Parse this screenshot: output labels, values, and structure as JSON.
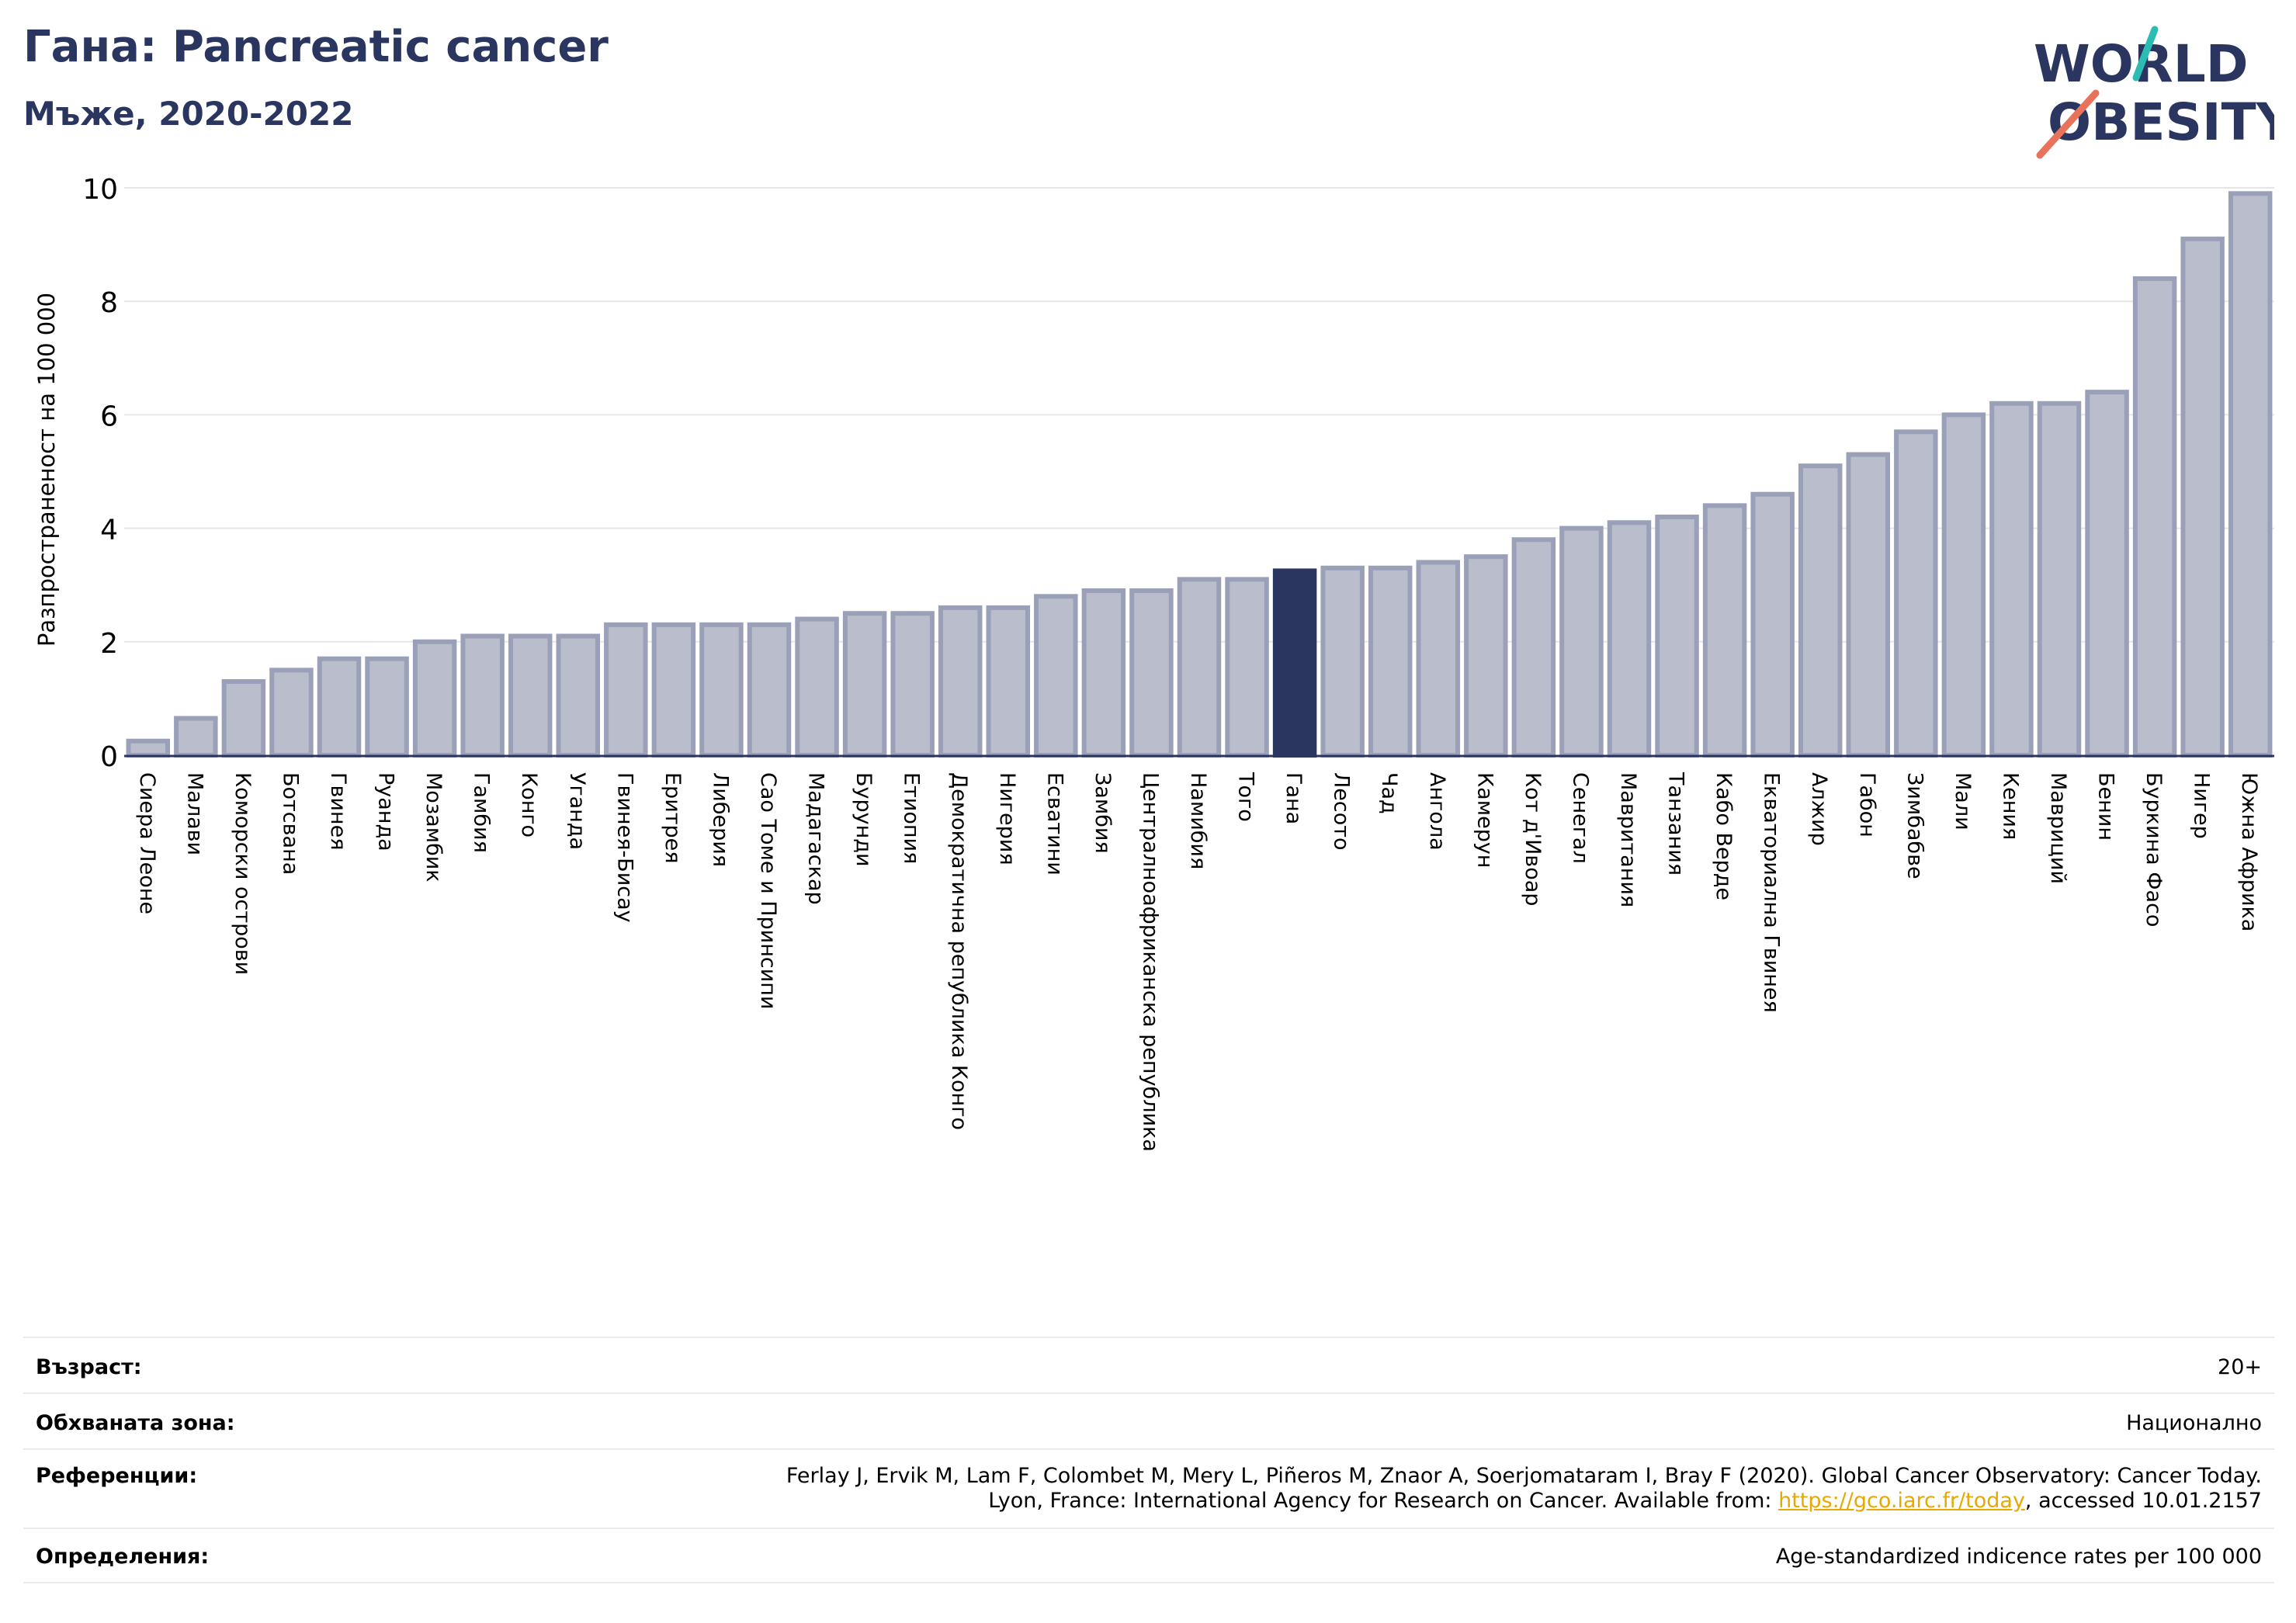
{
  "header": {
    "title": "Гана: Pancreatic cancer",
    "subtitle": "Мъже, 2020-2022"
  },
  "logo": {
    "line1": "WORLD",
    "line2": "OBESITY",
    "colors": {
      "text": "#2a3560",
      "teal": "#2bbcb4",
      "coral": "#e8735a"
    }
  },
  "chart_data": {
    "type": "bar",
    "title": "",
    "xlabel": "",
    "ylabel": "Разпространеност  на 100 000",
    "ylim": [
      0,
      10
    ],
    "yticks": [
      0,
      2,
      4,
      6,
      8,
      10
    ],
    "grid": true,
    "highlight": "Гана",
    "colors": {
      "bar": "#b9bdcc",
      "bar_edge": "#9aa0b8",
      "highlight": "#2a3560",
      "axis": "#2a3560"
    },
    "categories": [
      "Сиера Леоне",
      "Малави",
      "Коморски острови",
      "Ботсвана",
      "Гвинея",
      "Руанда",
      "Мозамбик",
      "Гамбия",
      "Конго",
      "Уганда",
      "Гвинея-Бисау",
      "Еритрея",
      "Либерия",
      "Сао Томе и Принсипи",
      "Мадагаскар",
      "Бурунди",
      "Етиопия",
      "Демократична република Конго",
      "Нигерия",
      "Есватини",
      "Замбия",
      "Централноафриканска република",
      "Намибия",
      "Того",
      "Гана",
      "Лесото",
      "Чад",
      "Ангола",
      "Камерун",
      "Кот д'Ивоар",
      "Сенегал",
      "Мавритания",
      "Танзания",
      "Кабо Верде",
      "Екваториална Гвинея",
      "Алжир",
      "Габон",
      "Зимбабве",
      "Мали",
      "Кения",
      "Мавриций",
      "Бенин",
      "Буркина Фасо",
      "Нигер",
      "Южна Африка"
    ],
    "values": [
      0.25,
      0.65,
      1.3,
      1.5,
      1.7,
      1.7,
      2.0,
      2.1,
      2.1,
      2.1,
      2.3,
      2.3,
      2.3,
      2.3,
      2.4,
      2.5,
      2.5,
      2.6,
      2.6,
      2.8,
      2.9,
      2.9,
      3.1,
      3.1,
      3.25,
      3.3,
      3.3,
      3.4,
      3.5,
      3.8,
      4.0,
      4.1,
      4.2,
      4.4,
      4.6,
      5.1,
      5.3,
      5.7,
      6.0,
      6.2,
      6.2,
      6.4,
      8.4,
      9.1,
      9.9
    ]
  },
  "info": {
    "age_label": "Възраст:",
    "age_value": "20+",
    "area_label": "Обхваната зона:",
    "area_value": "Национално",
    "refs_label": "Референции:",
    "refs_line1": "Ferlay J, Ervik M, Lam F, Colombet M, Mery L, Piñeros M, Znaor A, Soerjomataram I, Bray F (2020). Global Cancer Observatory: Cancer Today.",
    "refs_line2_prefix": "Lyon, France: International Agency for Research on Cancer. Available from: ",
    "refs_link": "https://gco.iarc.fr/today",
    "refs_line2_suffix": ", accessed 10.01.2157",
    "defs_label": "Определения:",
    "defs_value": "Age-standardized indicence rates per 100 000"
  }
}
